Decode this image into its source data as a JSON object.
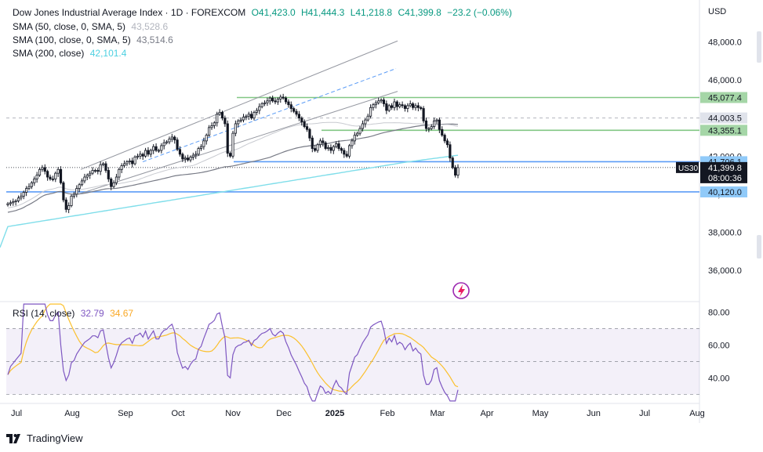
{
  "legend": {
    "title": "Dow Jones Industrial Average Index · 1D · FOREXCOM",
    "ohlc": {
      "o": "O41,423.0",
      "h": "H41,444.3",
      "l": "L41,218.8",
      "c": "C41,399.8",
      "chg": "−23.2 (−0.06%)"
    },
    "sma50": {
      "label": "SMA (50, close, 0, SMA, 5)",
      "value": "43,528.6"
    },
    "sma100": {
      "label": "SMA (100, close, 0, SMA, 5)",
      "value": "43,514.6"
    },
    "sma200": {
      "label": "SMA (200, close)",
      "value": "42,101.4"
    },
    "rsi": {
      "label": "RSI (14, close)",
      "value": "32.79",
      "ma_value": "34.67"
    }
  },
  "currency": "USD",
  "symbol_tag": "US30",
  "countdown": "08:00:36",
  "footer": {
    "brand": "TradingView",
    "logo_icon": "tradingview-logo-icon"
  },
  "colors": {
    "up": "#26a69a",
    "candle": "#131722",
    "sma50": "#787b86",
    "sma100": "#b2b5be",
    "sma200": "#80deea",
    "rsi": "#7e57c2",
    "rsi_ma": "#fbc02d",
    "level_green": "#81c784",
    "level_blue": "#5b9cf6"
  },
  "chart_data": [
    {
      "type": "candlestick",
      "title": "Dow Jones Industrial Average Index · 1D · FOREXCOM",
      "x_ticks": [
        "Jul",
        "Aug",
        "Sep",
        "Oct",
        "Nov",
        "Dec",
        "2025",
        "Feb",
        "Mar",
        "Apr",
        "May",
        "Jun",
        "Jul",
        "Aug"
      ],
      "y_ticks": [
        36000,
        38000,
        40000,
        42000,
        44000,
        46000,
        48000
      ],
      "y_tick_labels": [
        "36,000.0",
        "38,000.0",
        "40,000.0",
        "42,000.0",
        "44,000.0",
        "46,000.0",
        "48,000.0"
      ],
      "ylim": [
        34400,
        50200
      ],
      "levels": [
        {
          "value": 45077.4,
          "label": "45,077.4",
          "color": "green"
        },
        {
          "value": 44003.5,
          "label": "44,003.5",
          "color": "grey"
        },
        {
          "value": 43355.1,
          "label": "43,355.1",
          "color": "green"
        },
        {
          "value": 41706.1,
          "label": "41,706.1",
          "color": "blue"
        },
        {
          "value": 40120.0,
          "label": "40,120.0",
          "color": "blue"
        }
      ],
      "last_price": {
        "value": 41399.8,
        "label": "41,399.8"
      },
      "close_series": [
        39500,
        39550,
        39600,
        39650,
        39800,
        39900,
        40100,
        40300,
        40400,
        40600,
        40800,
        41000,
        41300,
        41400,
        41200,
        40900,
        40800,
        40800,
        41100,
        41300,
        40600,
        39700,
        39200,
        39400,
        39900,
        40000,
        40300,
        40500,
        40700,
        40900,
        41000,
        41100,
        41250,
        41250,
        41200,
        41550,
        41600,
        41250,
        40800,
        40400,
        40600,
        40900,
        41300,
        41500,
        41600,
        41700,
        41750,
        41600,
        41950,
        42000,
        42100,
        42000,
        42300,
        42100,
        42300,
        42500,
        42300,
        42300,
        42550,
        42700,
        42750,
        42900,
        43000,
        42850,
        42350,
        42100,
        41850,
        41900,
        41800,
        41950,
        42050,
        42100,
        42400,
        42500,
        42800,
        43100,
        43500,
        43600,
        43750,
        44200,
        44300,
        44000,
        43700,
        42150,
        42000,
        43200,
        43700,
        43850,
        43900,
        44050,
        44100,
        44200,
        44000,
        44300,
        44400,
        44600,
        44750,
        44800,
        44900,
        45050,
        44900,
        44850,
        45000,
        45100,
        45050,
        44850,
        44700,
        44500,
        44350,
        44200,
        44000,
        43800,
        43550,
        43400,
        42950,
        42400,
        42300,
        42600,
        42800,
        42700,
        42400,
        42450,
        42300,
        42500,
        42650,
        42400,
        42300,
        42100,
        42000,
        42550,
        42800,
        43100,
        43200,
        43450,
        43700,
        43900,
        44100,
        44550,
        44700,
        44800,
        44900,
        44950,
        44750,
        44400,
        44650,
        44550,
        44850,
        44600,
        44700,
        44650,
        44500,
        44650,
        44750,
        44550,
        44650,
        44550,
        44500,
        43850,
        43450,
        43450,
        43550,
        43850,
        43900,
        43400,
        43100,
        42800,
        42600,
        41900,
        41400,
        41000,
        41400
      ]
    },
    {
      "type": "line",
      "title": "RSI (14, close)",
      "series_names": [
        "RSI",
        "RSI-based MA"
      ],
      "y_ticks": [
        40,
        60,
        80
      ],
      "y_tick_labels": [
        "40.00",
        "60.00",
        "80.00"
      ],
      "ylim": [
        25,
        86
      ],
      "band": [
        30,
        70
      ],
      "midline": 50,
      "rsi_last": 32.79,
      "ma_last": 34.67
    }
  ]
}
